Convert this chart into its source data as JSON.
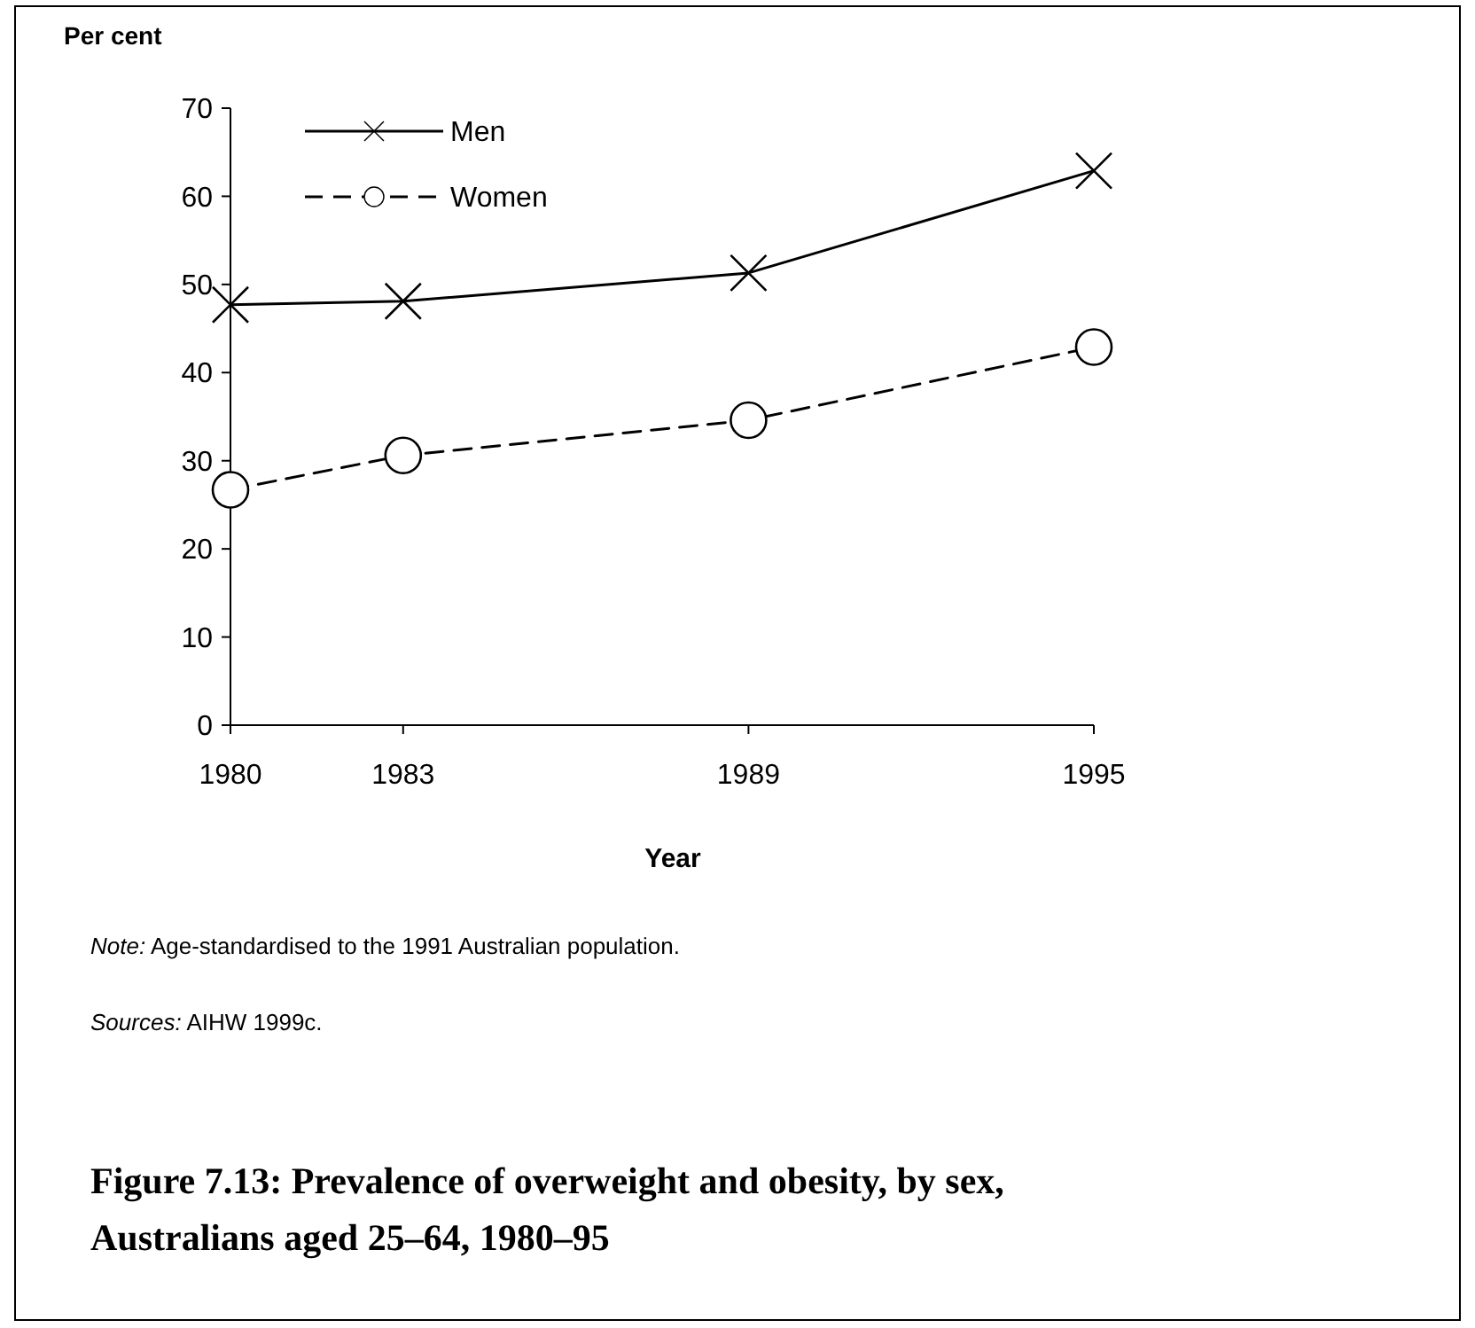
{
  "chart_data": {
    "type": "line",
    "title": "Figure 7.13: Prevalence of overweight and obesity, by sex, Australians aged 25–64, 1980–95",
    "xlabel": "Year",
    "ylabel": "Per cent",
    "x": [
      1980,
      1983,
      1989,
      1995
    ],
    "xlim": [
      1980,
      1995
    ],
    "xticks": [
      1980,
      1983,
      1989,
      1995
    ],
    "ylim": [
      0,
      70
    ],
    "yticks": [
      0,
      10,
      20,
      30,
      40,
      50,
      60,
      70
    ],
    "series": [
      {
        "name": "Men",
        "color": "#000000",
        "marker": "cross",
        "line_style": "solid",
        "values": [
          47.7,
          48.1,
          51.3,
          62.9
        ]
      },
      {
        "name": "Women",
        "color": "#000000",
        "marker": "circle",
        "line_style": "dashed",
        "values": [
          26.7,
          30.6,
          34.6,
          42.9
        ]
      }
    ],
    "legend": "top left",
    "grid": false,
    "annotations": [
      "Note: Age-standardised to the 1991 Australian population.",
      "Sources: AIHW 1999c."
    ]
  }
}
